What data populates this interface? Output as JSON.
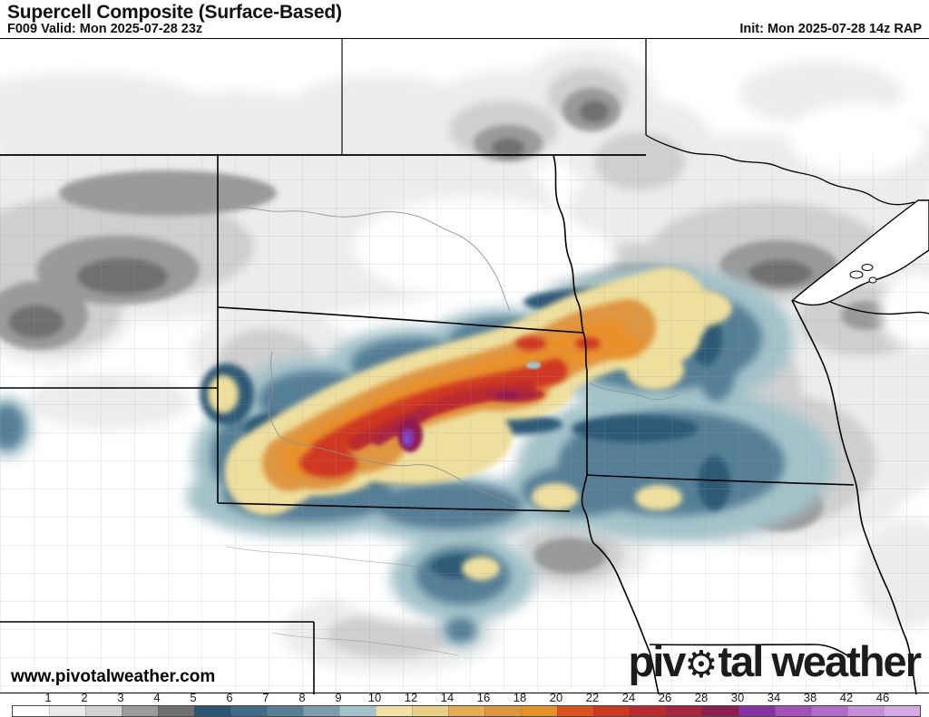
{
  "header": {
    "title": "Supercell Composite (Surface-Based)",
    "valid": "F009 Valid: Mon 2025-07-28 23z",
    "init": "Init: Mon 2025-07-28 14z RAP"
  },
  "watermark": "www.pivotalweather.com",
  "logo": {
    "part1": "piv",
    "gear_glyph": "⚙",
    "part2": "tal",
    "part3": "weather"
  },
  "map": {
    "kind": "filled-contour supercell composite forecast map",
    "region": "Northern Plains / Upper Midwest (MT, WY, ND, SD, NE, MN, IA, WI)"
  },
  "colorbar": {
    "outline": "#4a4a4a",
    "ticks": [
      "1",
      "2",
      "3",
      "4",
      "5",
      "6",
      "7",
      "8",
      "9",
      "10",
      "12",
      "14",
      "16",
      "18",
      "20",
      "22",
      "24",
      "26",
      "28",
      "30",
      "34",
      "38",
      "42",
      "46"
    ],
    "cells": [
      {
        "range": "0-1",
        "color": "#ffffff"
      },
      {
        "range": "1-2",
        "color": "#eaeaea"
      },
      {
        "range": "2-3",
        "color": "#d2d2d2"
      },
      {
        "range": "3-4",
        "color": "#9b9b9b"
      },
      {
        "range": "4-5",
        "color": "#6f6f6f"
      },
      {
        "range": "5-6",
        "color": "#2b5570"
      },
      {
        "range": "6-7",
        "color": "#3f6b86"
      },
      {
        "range": "7-8",
        "color": "#577f96"
      },
      {
        "range": "8-9",
        "color": "#7b9dac"
      },
      {
        "range": "9-10",
        "color": "#a3c2c9"
      },
      {
        "range": "10-12",
        "color": "#efe1a3"
      },
      {
        "range": "12-14",
        "color": "#e9cf83"
      },
      {
        "range": "14-16",
        "color": "#e4ad53"
      },
      {
        "range": "16-18",
        "color": "#df9640"
      },
      {
        "range": "18-20",
        "color": "#e8912b"
      },
      {
        "range": "20-22",
        "color": "#dd511e"
      },
      {
        "range": "22-24",
        "color": "#cf3820"
      },
      {
        "range": "24-26",
        "color": "#bb2a2e"
      },
      {
        "range": "26-28",
        "color": "#a82540"
      },
      {
        "range": "28-30",
        "color": "#8e1d50"
      },
      {
        "range": "30-34",
        "color": "#8831a5"
      },
      {
        "range": "34-38",
        "color": "#a34fb9"
      },
      {
        "range": "38-42",
        "color": "#b26bcb"
      },
      {
        "range": "42-46",
        "color": "#c78dd9"
      },
      {
        "range": "46+",
        "color": "#d5a9e3"
      }
    ]
  }
}
